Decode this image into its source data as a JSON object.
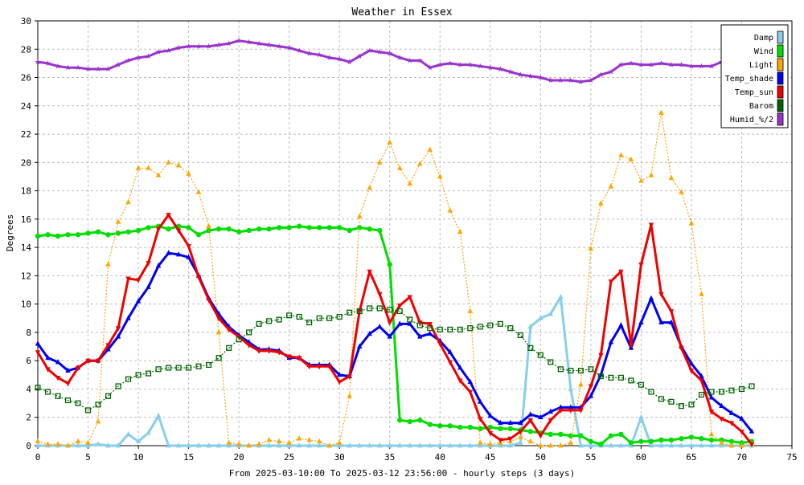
{
  "chart_data": {
    "type": "line",
    "title": "Weather in Essex",
    "xlabel": "From 2025-03-10:00 To 2025-03-12 23:56:00 - hourly steps (3 days)",
    "ylabel": "Degrees",
    "xlim": [
      0,
      75
    ],
    "ylim": [
      0,
      30
    ],
    "x_ticks": [
      0,
      5,
      10,
      15,
      20,
      25,
      30,
      35,
      40,
      45,
      50,
      55,
      60,
      65,
      70,
      75
    ],
    "y_ticks": [
      0,
      2,
      4,
      6,
      8,
      10,
      12,
      14,
      16,
      18,
      20,
      22,
      24,
      26,
      28,
      30
    ],
    "grid": true,
    "legend_position": "top-right",
    "x": [
      0,
      1,
      2,
      3,
      4,
      5,
      6,
      7,
      8,
      9,
      10,
      11,
      12,
      13,
      14,
      15,
      16,
      17,
      18,
      19,
      20,
      21,
      22,
      23,
      24,
      25,
      26,
      27,
      28,
      29,
      30,
      31,
      32,
      33,
      34,
      35,
      36,
      37,
      38,
      39,
      40,
      41,
      42,
      43,
      44,
      45,
      46,
      47,
      48,
      49,
      50,
      51,
      52,
      53,
      54,
      55,
      56,
      57,
      58,
      59,
      60,
      61,
      62,
      63,
      64,
      65,
      66,
      67,
      68,
      69,
      70,
      71
    ],
    "series": [
      {
        "name": "Damp",
        "color": "#87ceeb",
        "style": "solid",
        "marker": "triangle-up",
        "values": [
          0,
          0,
          0,
          0,
          0,
          0,
          0.1,
          0,
          0,
          0.8,
          0.3,
          0.9,
          2.1,
          0,
          0,
          0,
          0,
          0,
          0,
          0,
          0,
          0,
          0,
          0,
          0,
          0,
          0,
          0,
          0,
          0,
          0,
          0,
          0,
          0,
          0,
          0,
          0,
          0,
          0,
          0,
          0,
          0,
          0,
          0,
          0,
          0,
          0,
          0,
          0.2,
          8.4,
          9.0,
          9.3,
          10.5,
          4.0,
          0,
          0,
          0,
          0,
          0,
          0,
          2.0,
          0,
          0,
          0,
          0,
          0,
          0,
          0,
          0,
          0,
          0,
          0
        ]
      },
      {
        "name": "Wind",
        "color": "#00dd00",
        "style": "solid",
        "marker": "circle",
        "values": [
          14.8,
          14.9,
          14.8,
          14.9,
          14.9,
          15.0,
          15.1,
          14.9,
          15.0,
          15.1,
          15.2,
          15.4,
          15.5,
          15.3,
          15.5,
          15.4,
          14.9,
          15.2,
          15.3,
          15.3,
          15.1,
          15.2,
          15.3,
          15.3,
          15.4,
          15.4,
          15.5,
          15.4,
          15.4,
          15.4,
          15.4,
          15.2,
          15.4,
          15.3,
          15.2,
          12.8,
          1.8,
          1.7,
          1.8,
          1.5,
          1.4,
          1.4,
          1.3,
          1.3,
          1.2,
          1.3,
          1.2,
          1.2,
          1.1,
          1.0,
          0.9,
          0.8,
          0.8,
          0.7,
          0.7,
          0.3,
          0.1,
          0.7,
          0.8,
          0.2,
          0.3,
          0.3,
          0.4,
          0.4,
          0.5,
          0.6,
          0.5,
          0.4,
          0.4,
          0.3,
          0.2,
          0.3
        ]
      },
      {
        "name": "Light",
        "color": "#ffa500",
        "style": "dotted",
        "marker": "triangle-up",
        "values": [
          0.3,
          0.1,
          0.1,
          0,
          0.3,
          0.2,
          1.7,
          12.8,
          15.8,
          17.2,
          19.6,
          19.6,
          19.1,
          20.0,
          19.8,
          19.2,
          17.9,
          15.5,
          8.0,
          0.2,
          0.1,
          0,
          0.1,
          0.4,
          0.3,
          0.2,
          0.5,
          0.4,
          0.3,
          0,
          0.2,
          3.5,
          16.2,
          18.2,
          20.0,
          21.4,
          19.6,
          18.5,
          19.9,
          20.9,
          19.0,
          16.6,
          15.1,
          9.5,
          0.2,
          0.1,
          0.2,
          0.3,
          0.6,
          0.3,
          0,
          0,
          0,
          0.2,
          4.3,
          13.9,
          17.1,
          18.3,
          20.5,
          20.2,
          18.7,
          19.1,
          23.5,
          18.9,
          17.9,
          15.7,
          10.7,
          0.8,
          0.2,
          0,
          0,
          0.1
        ]
      },
      {
        "name": "Temp_shade",
        "color": "#0000ee",
        "style": "solid",
        "marker": "triangle-up",
        "values": [
          7.2,
          6.2,
          5.9,
          5.3,
          5.5,
          6.0,
          6.0,
          6.8,
          7.7,
          9.0,
          10.2,
          11.2,
          12.7,
          13.6,
          13.5,
          13.3,
          12.0,
          10.4,
          9.3,
          8.4,
          7.8,
          7.3,
          6.8,
          6.8,
          6.7,
          6.2,
          6.2,
          5.7,
          5.7,
          5.7,
          5.0,
          4.9,
          7.0,
          7.9,
          8.4,
          7.7,
          8.6,
          8.6,
          7.7,
          7.9,
          7.4,
          6.6,
          5.5,
          4.5,
          3.1,
          2.1,
          1.6,
          1.6,
          1.6,
          2.2,
          2.0,
          2.4,
          2.7,
          2.7,
          2.7,
          3.5,
          5.0,
          7.3,
          8.5,
          6.9,
          8.7,
          10.4,
          8.7,
          8.7,
          7.0,
          5.8,
          4.9,
          3.4,
          2.8,
          2.3,
          1.9,
          1.0
        ]
      },
      {
        "name": "Temp_sun",
        "color": "#ee0000",
        "style": "solid",
        "marker": "triangle-down",
        "values": [
          6.6,
          5.4,
          4.8,
          4.4,
          5.5,
          6.0,
          6.0,
          7.1,
          8.3,
          11.8,
          11.7,
          12.9,
          15.3,
          16.3,
          15.2,
          14.1,
          11.9,
          10.3,
          9.0,
          8.2,
          7.7,
          7.1,
          6.7,
          6.7,
          6.6,
          6.3,
          6.2,
          5.6,
          5.6,
          5.6,
          4.5,
          4.9,
          9.5,
          12.3,
          10.7,
          8.7,
          9.9,
          10.5,
          8.7,
          8.6,
          7.2,
          5.9,
          4.6,
          3.8,
          1.9,
          0.9,
          0.4,
          0.5,
          1.0,
          1.8,
          0.7,
          1.8,
          2.5,
          2.5,
          2.5,
          4.2,
          6.4,
          11.6,
          12.3,
          7.1,
          12.8,
          15.6,
          10.7,
          9.5,
          6.9,
          5.3,
          4.6,
          2.4,
          1.9,
          1.6,
          1.0,
          0.1
        ]
      },
      {
        "name": "Barom",
        "color": "#006400",
        "style": "dotted",
        "marker": "square",
        "values": [
          4.1,
          3.8,
          3.5,
          3.2,
          3.0,
          2.5,
          2.9,
          3.5,
          4.2,
          4.7,
          5.0,
          5.1,
          5.4,
          5.5,
          5.5,
          5.5,
          5.6,
          5.7,
          6.2,
          6.9,
          7.5,
          8.0,
          8.6,
          8.8,
          8.9,
          9.2,
          9.1,
          8.7,
          9.0,
          9.0,
          9.1,
          9.4,
          9.5,
          9.7,
          9.7,
          9.6,
          9.5,
          8.9,
          8.5,
          8.3,
          8.2,
          8.2,
          8.2,
          8.3,
          8.4,
          8.5,
          8.6,
          8.3,
          7.8,
          6.9,
          6.4,
          5.9,
          5.4,
          5.3,
          5.3,
          5.4,
          4.9,
          4.8,
          4.8,
          4.6,
          4.3,
          3.8,
          3.3,
          3.1,
          2.8,
          2.9,
          3.6,
          3.8,
          3.8,
          3.9,
          4.0,
          4.2
        ]
      },
      {
        "name": "Humid_%/2",
        "color": "#9932cc",
        "style": "solid",
        "marker": "star",
        "values": [
          27.1,
          27.0,
          26.8,
          26.7,
          26.7,
          26.6,
          26.6,
          26.6,
          26.9,
          27.2,
          27.4,
          27.5,
          27.8,
          27.9,
          28.1,
          28.2,
          28.2,
          28.2,
          28.3,
          28.4,
          28.6,
          28.5,
          28.4,
          28.3,
          28.2,
          28.1,
          27.9,
          27.7,
          27.6,
          27.4,
          27.3,
          27.1,
          27.5,
          27.9,
          27.8,
          27.7,
          27.4,
          27.2,
          27.2,
          26.7,
          26.9,
          27.0,
          26.9,
          26.9,
          26.8,
          26.7,
          26.6,
          26.4,
          26.2,
          26.1,
          26.0,
          25.8,
          25.8,
          25.8,
          25.7,
          25.8,
          26.2,
          26.4,
          26.9,
          27.0,
          26.9,
          26.9,
          27.0,
          26.9,
          26.9,
          26.8,
          26.8,
          26.8,
          27.1,
          27.2,
          27.2,
          27.3
        ]
      }
    ]
  }
}
